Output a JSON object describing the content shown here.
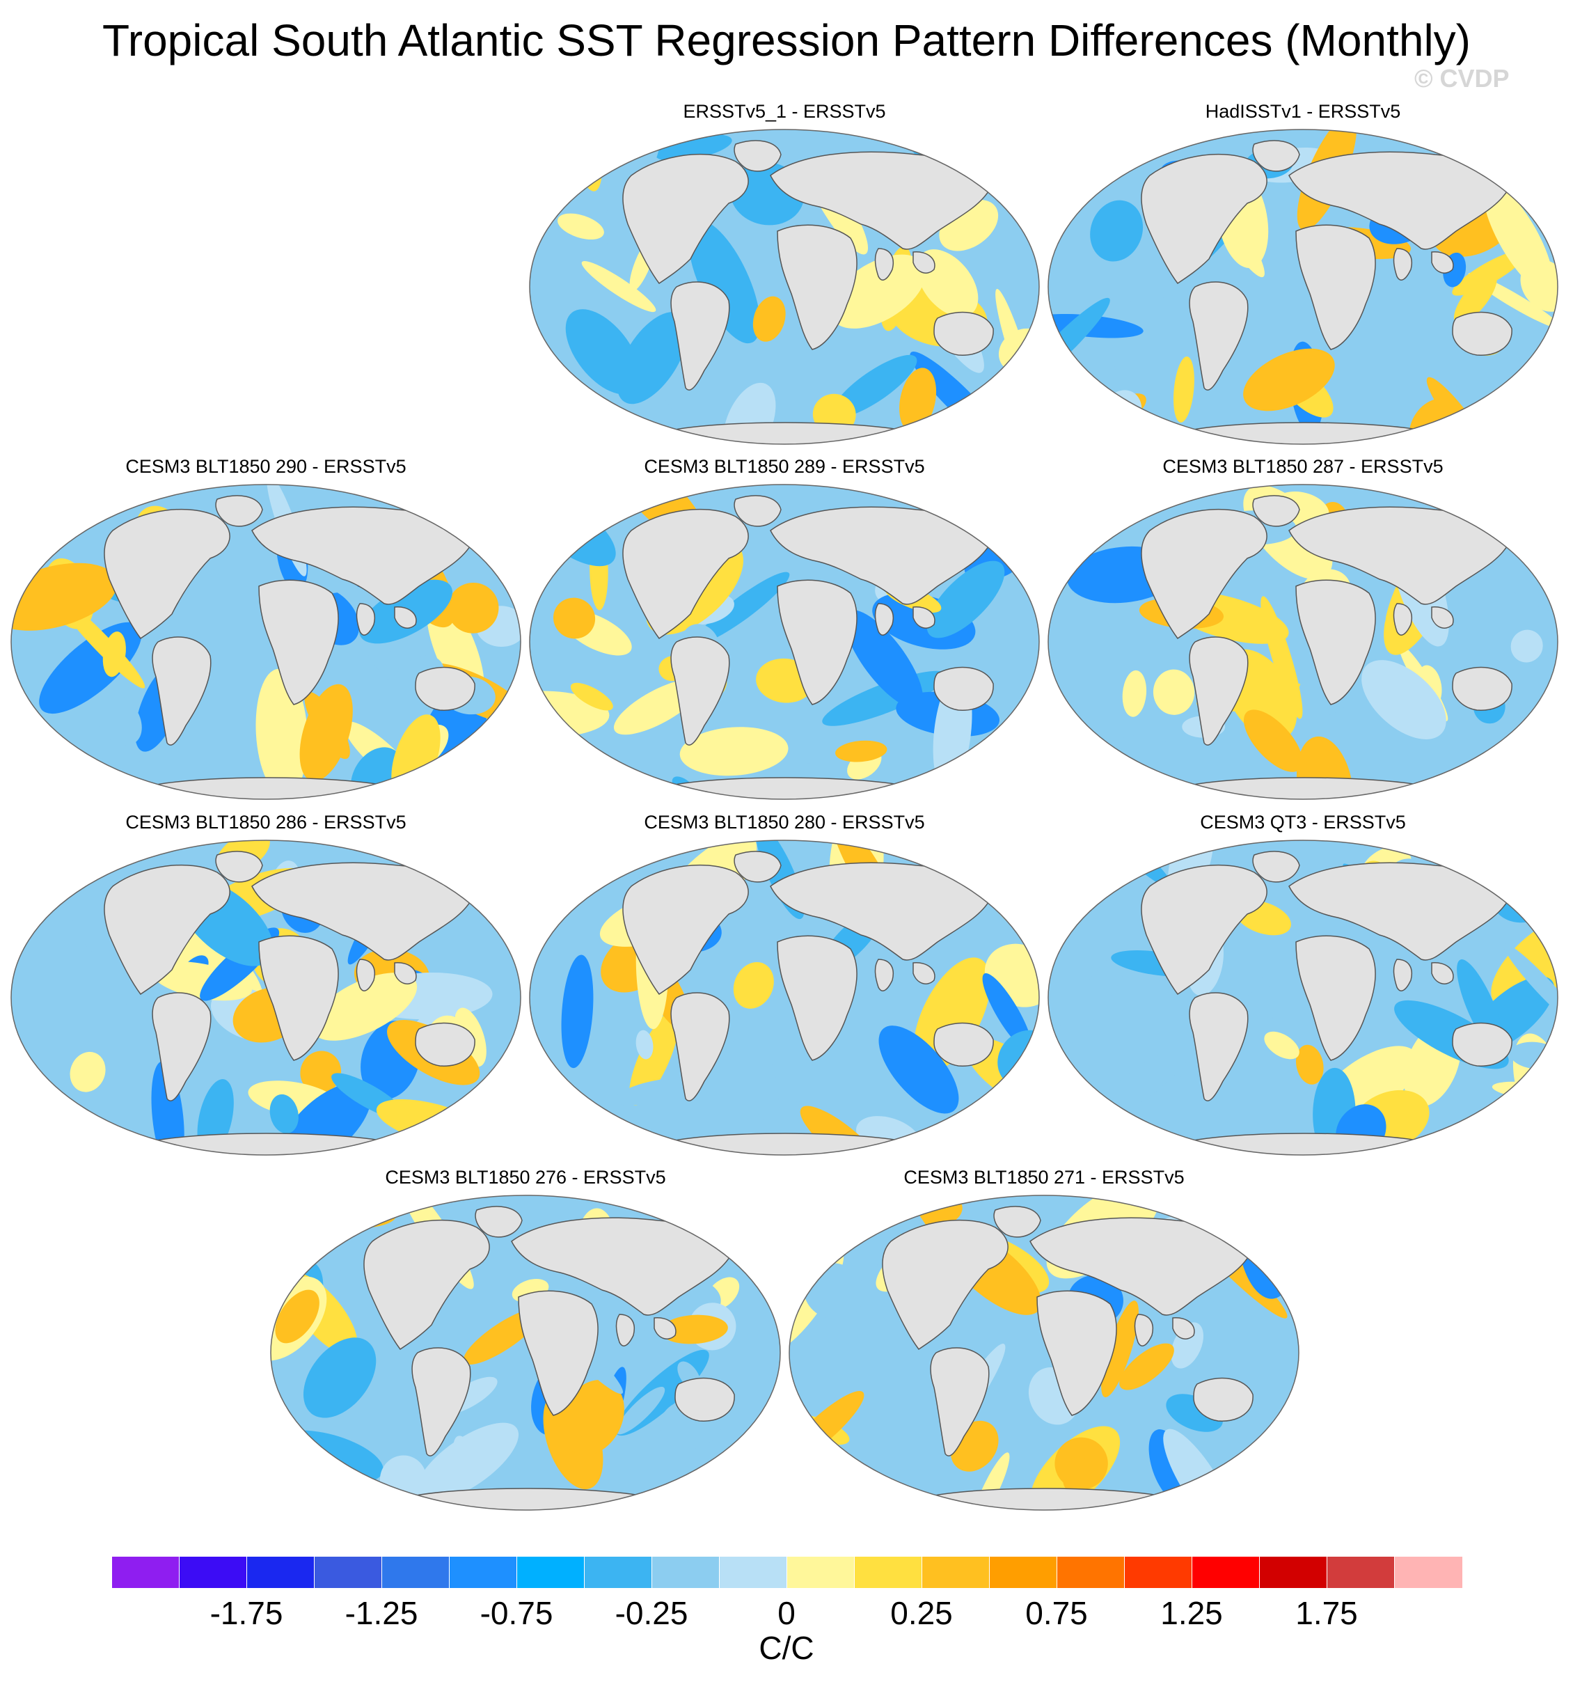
{
  "title": "Tropical South Atlantic SST Regression Pattern Differences (Monthly)",
  "copyright": "© CVDP",
  "panels": [
    {
      "label": "ERSSTv5_1 - ERSSTv5",
      "variant": 0
    },
    {
      "label": "HadISSTv1 - ERSSTv5",
      "variant": 1
    },
    {
      "label": "CESM3 BLT1850 290 - ERSSTv5",
      "variant": 2
    },
    {
      "label": "CESM3 BLT1850 289 - ERSSTv5",
      "variant": 3
    },
    {
      "label": "CESM3 BLT1850 287 - ERSSTv5",
      "variant": 4
    },
    {
      "label": "CESM3 BLT1850 286 - ERSSTv5",
      "variant": 5
    },
    {
      "label": "CESM3 BLT1850 280 - ERSSTv5",
      "variant": 6
    },
    {
      "label": "CESM3 QT3 - ERSSTv5",
      "variant": 7
    },
    {
      "label": "CESM3 BLT1850 276 - ERSSTv5",
      "variant": 8
    },
    {
      "label": "CESM3 BLT1850 271 - ERSSTv5",
      "variant": 9
    }
  ],
  "colorbar": {
    "colors": [
      "#8f1ef0",
      "#3c0cf5",
      "#1a28f0",
      "#3a5ae0",
      "#2f78ec",
      "#1e90ff",
      "#00b0ff",
      "#3cb4f2",
      "#8ccdf0",
      "#b8e0f6",
      "#fff79a",
      "#ffe040",
      "#ffc020",
      "#ff9e00",
      "#ff7400",
      "#ff3a00",
      "#ff0000",
      "#d20000",
      "#d23c3c",
      "#ffb4b4"
    ],
    "tick_labels": [
      "-1.75",
      "-1.25",
      "-0.75",
      "-0.25",
      "0",
      "0.25",
      "0.75",
      "1.25",
      "1.75"
    ],
    "units": "C/C"
  }
}
